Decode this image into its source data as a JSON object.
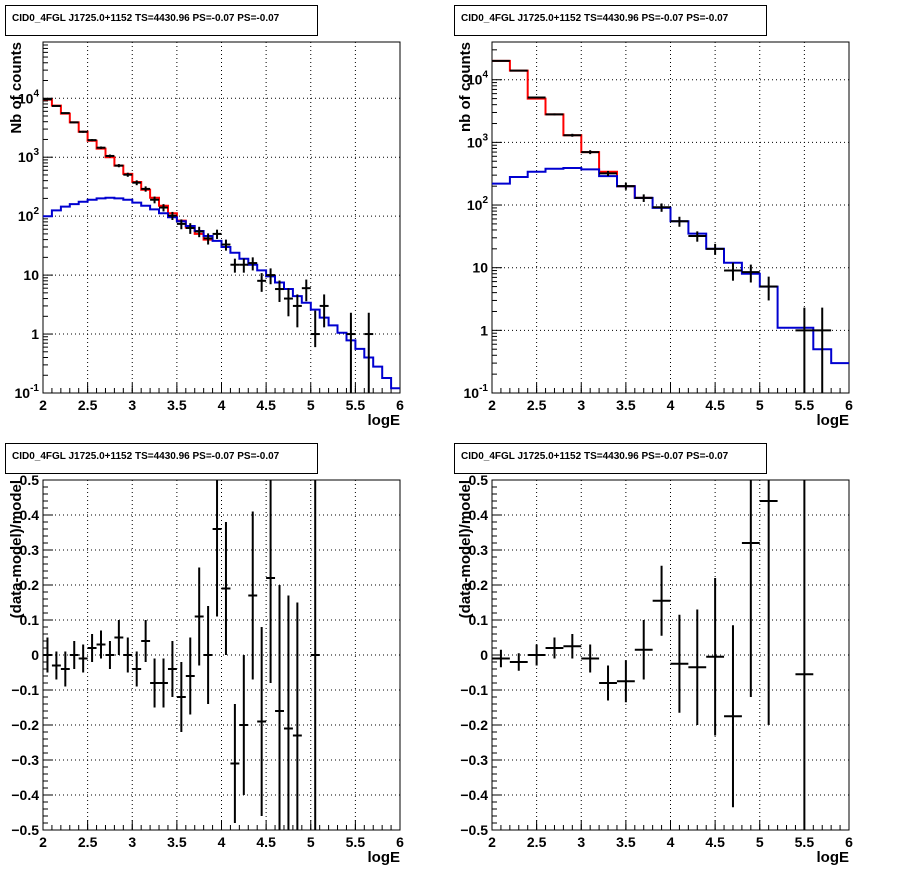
{
  "chart_data": [
    {
      "type": "step-histogram-log",
      "title": "CID0_4FGL J1725.0+1152 TS=4430.96 PS=-0.07 PS=-0.07",
      "xlabel": "logE",
      "ylabel": "Nb of counts",
      "xlim": [
        2,
        6
      ],
      "ylim": [
        0.1,
        90000
      ],
      "ylog": true,
      "grid": true,
      "x_ticks": [
        "2",
        "2.5",
        "3",
        "3.5",
        "4",
        "4.5",
        "5",
        "5.5",
        "6"
      ],
      "y_ticks": [
        {
          "v": 0.1,
          "exp": "-1"
        },
        {
          "v": 1,
          "label": "1"
        },
        {
          "v": 10,
          "label": "10"
        },
        {
          "v": 100,
          "exp": "2"
        },
        {
          "v": 1000,
          "exp": "3"
        },
        {
          "v": 10000,
          "exp": "4"
        }
      ],
      "bin_width": 0.1,
      "bin_start": 2.0,
      "series": [
        {
          "color": "#ff0000",
          "kind": "step",
          "values": [
            9500,
            7500,
            5500,
            3900,
            2700,
            1900,
            1400,
            1000,
            720,
            520,
            380,
            280,
            205,
            150,
            112,
            84,
            64,
            50,
            40
          ]
        },
        {
          "color": "#0000d0",
          "kind": "step",
          "values": [
            100,
            125,
            145,
            160,
            175,
            190,
            200,
            205,
            200,
            190,
            170,
            150,
            130,
            112,
            96,
            82,
            68,
            56,
            46,
            38,
            30,
            24,
            19,
            15,
            12,
            9.5,
            7.5,
            5.8,
            4.4,
            3.4,
            2.6,
            1.9,
            1.4,
            1.05,
            0.78,
            0.56,
            0.4,
            0.28,
            0.18,
            0.12
          ]
        }
      ],
      "points": [
        {
          "x": 2.05,
          "y": 9600,
          "lo": 9400,
          "hi": 9800
        },
        {
          "x": 2.15,
          "y": 7400,
          "lo": 7250,
          "hi": 7550
        },
        {
          "x": 2.25,
          "y": 5600,
          "lo": 5450,
          "hi": 5750
        },
        {
          "x": 2.35,
          "y": 3900,
          "lo": 3780,
          "hi": 4020
        },
        {
          "x": 2.45,
          "y": 2700,
          "lo": 2600,
          "hi": 2800
        },
        {
          "x": 2.55,
          "y": 1950,
          "lo": 1870,
          "hi": 2030
        },
        {
          "x": 2.65,
          "y": 1450,
          "lo": 1380,
          "hi": 1520
        },
        {
          "x": 2.75,
          "y": 1050,
          "lo": 990,
          "hi": 1110
        },
        {
          "x": 2.85,
          "y": 720,
          "lo": 675,
          "hi": 765
        },
        {
          "x": 2.95,
          "y": 505,
          "lo": 465,
          "hi": 545
        },
        {
          "x": 3.05,
          "y": 370,
          "lo": 335,
          "hi": 405
        },
        {
          "x": 3.15,
          "y": 290,
          "lo": 260,
          "hi": 320
        },
        {
          "x": 3.25,
          "y": 190,
          "lo": 165,
          "hi": 215
        },
        {
          "x": 3.35,
          "y": 140,
          "lo": 120,
          "hi": 160
        },
        {
          "x": 3.45,
          "y": 102,
          "lo": 86,
          "hi": 118
        },
        {
          "x": 3.55,
          "y": 74,
          "lo": 60,
          "hi": 88
        },
        {
          "x": 3.65,
          "y": 63,
          "lo": 50,
          "hi": 76
        },
        {
          "x": 3.75,
          "y": 55,
          "lo": 44,
          "hi": 66
        },
        {
          "x": 3.85,
          "y": 42,
          "lo": 33,
          "hi": 51
        },
        {
          "x": 3.95,
          "y": 50,
          "lo": 41,
          "hi": 59
        },
        {
          "x": 4.05,
          "y": 33,
          "lo": 26,
          "hi": 40
        },
        {
          "x": 4.15,
          "y": 15,
          "lo": 11,
          "hi": 19
        },
        {
          "x": 4.25,
          "y": 15,
          "lo": 11,
          "hi": 19
        },
        {
          "x": 4.35,
          "y": 16,
          "lo": 12,
          "hi": 20
        },
        {
          "x": 4.45,
          "y": 8,
          "lo": 5.2,
          "hi": 10.8
        },
        {
          "x": 4.55,
          "y": 10,
          "lo": 7,
          "hi": 13
        },
        {
          "x": 4.65,
          "y": 5.8,
          "lo": 3.5,
          "hi": 8.1
        },
        {
          "x": 4.75,
          "y": 4,
          "lo": 2,
          "hi": 6
        },
        {
          "x": 4.85,
          "y": 3,
          "lo": 1.3,
          "hi": 4.7
        },
        {
          "x": 4.95,
          "y": 6,
          "lo": 3.6,
          "hi": 8.4
        },
        {
          "x": 5.05,
          "y": 1,
          "lo": 0.6,
          "hi": 2.5
        },
        {
          "x": 5.15,
          "y": 3,
          "lo": 1.3,
          "hi": 4.7
        },
        {
          "x": 5.45,
          "y": 1,
          "lo": 0.1,
          "hi": 2.3
        },
        {
          "x": 5.65,
          "y": 1,
          "lo": 0.1,
          "hi": 2.3
        }
      ]
    },
    {
      "type": "step-histogram-log",
      "title": "CID0_4FGL J1725.0+1152 TS=4430.96 PS=-0.07 PS=-0.07",
      "xlabel": "logE",
      "ylabel": "nb of counts",
      "xlim": [
        2,
        6
      ],
      "ylim": [
        0.1,
        40000
      ],
      "ylog": true,
      "grid": true,
      "x_ticks": [
        "2",
        "2.5",
        "3",
        "3.5",
        "4",
        "4.5",
        "5",
        "5.5",
        "6"
      ],
      "y_ticks": [
        {
          "v": 0.1,
          "exp": "-1"
        },
        {
          "v": 1,
          "label": "1"
        },
        {
          "v": 10,
          "label": "10"
        },
        {
          "v": 100,
          "exp": "2"
        },
        {
          "v": 1000,
          "exp": "3"
        },
        {
          "v": 10000,
          "exp": "4"
        }
      ],
      "bin_width": 0.2,
      "bin_start": 2.0,
      "series": [
        {
          "color": "#ff0000",
          "kind": "step",
          "values": [
            20000,
            14000,
            5000,
            2800,
            1300,
            700,
            340,
            200,
            130
          ]
        },
        {
          "color": "#0000d0",
          "kind": "step",
          "values": [
            220,
            280,
            340,
            380,
            390,
            370,
            290,
            200,
            130,
            90,
            55,
            35,
            20,
            12,
            8,
            5,
            1.1,
            1.1,
            0.5,
            0.3
          ]
        }
      ],
      "points": [
        {
          "x": 2.1,
          "y": 20000,
          "lo": 19600,
          "hi": 20400
        },
        {
          "x": 2.3,
          "y": 14000,
          "lo": 13700,
          "hi": 14300
        },
        {
          "x": 2.5,
          "y": 5200,
          "lo": 5050,
          "hi": 5350
        },
        {
          "x": 2.7,
          "y": 2800,
          "lo": 2700,
          "hi": 2900
        },
        {
          "x": 2.9,
          "y": 1300,
          "lo": 1230,
          "hi": 1370
        },
        {
          "x": 3.1,
          "y": 700,
          "lo": 650,
          "hi": 750
        },
        {
          "x": 3.3,
          "y": 320,
          "lo": 290,
          "hi": 350
        },
        {
          "x": 3.5,
          "y": 200,
          "lo": 175,
          "hi": 225
        },
        {
          "x": 3.7,
          "y": 130,
          "lo": 112,
          "hi": 148
        },
        {
          "x": 3.9,
          "y": 92,
          "lo": 78,
          "hi": 106
        },
        {
          "x": 4.1,
          "y": 55,
          "lo": 45,
          "hi": 65
        },
        {
          "x": 4.3,
          "y": 32,
          "lo": 26,
          "hi": 38
        },
        {
          "x": 4.5,
          "y": 20,
          "lo": 16,
          "hi": 24
        },
        {
          "x": 4.7,
          "y": 9,
          "lo": 6.2,
          "hi": 12
        },
        {
          "x": 4.9,
          "y": 8.5,
          "lo": 5.8,
          "hi": 11.2
        },
        {
          "x": 5.1,
          "y": 5,
          "lo": 3,
          "hi": 7.2
        },
        {
          "x": 5.5,
          "y": 1,
          "lo": 0.1,
          "hi": 2.3
        },
        {
          "x": 5.7,
          "y": 1,
          "lo": 0.1,
          "hi": 2.3
        }
      ]
    },
    {
      "type": "scatter-errorbar",
      "title": "CID0_4FGL J1725.0+1152 TS=4430.96 PS=-0.07 PS=-0.07",
      "xlabel": "logE",
      "ylabel": "(data-model)/model",
      "xlim": [
        2,
        6
      ],
      "ylim": [
        -0.5,
        0.5
      ],
      "ylog": false,
      "grid": true,
      "x_ticks": [
        "2",
        "2.5",
        "3",
        "3.5",
        "4",
        "4.5",
        "5",
        "5.5",
        "6"
      ],
      "y_ticks": [
        {
          "v": -0.5,
          "label": "−0.5"
        },
        {
          "v": -0.4,
          "label": "−0.4"
        },
        {
          "v": -0.3,
          "label": "−0.3"
        },
        {
          "v": -0.2,
          "label": "−0.2"
        },
        {
          "v": -0.1,
          "label": "−0.1"
        },
        {
          "v": 0,
          "label": "0"
        },
        {
          "v": 0.1,
          "label": "0.1"
        },
        {
          "v": 0.2,
          "label": "0.2"
        },
        {
          "v": 0.3,
          "label": "0.3"
        },
        {
          "v": 0.4,
          "label": "0.4"
        },
        {
          "v": 0.5,
          "label": "0.5"
        }
      ],
      "half_width": 0.05,
      "points": [
        {
          "x": 2.05,
          "y": 0.0,
          "err": 0.05
        },
        {
          "x": 2.15,
          "y": -0.03,
          "err": 0.04
        },
        {
          "x": 2.25,
          "y": -0.04,
          "err": 0.05
        },
        {
          "x": 2.35,
          "y": 0.0,
          "err": 0.04
        },
        {
          "x": 2.45,
          "y": -0.01,
          "err": 0.04
        },
        {
          "x": 2.55,
          "y": 0.02,
          "err": 0.04
        },
        {
          "x": 2.65,
          "y": 0.03,
          "err": 0.04
        },
        {
          "x": 2.75,
          "y": 0.0,
          "err": 0.04
        },
        {
          "x": 2.85,
          "y": 0.05,
          "err": 0.05
        },
        {
          "x": 2.95,
          "y": 0.0,
          "err": 0.05
        },
        {
          "x": 3.05,
          "y": -0.04,
          "err": 0.05
        },
        {
          "x": 3.15,
          "y": 0.04,
          "err": 0.06
        },
        {
          "x": 3.25,
          "y": -0.08,
          "err": 0.07
        },
        {
          "x": 3.35,
          "y": -0.08,
          "err": 0.07
        },
        {
          "x": 3.45,
          "y": -0.04,
          "err": 0.08
        },
        {
          "x": 3.55,
          "y": -0.12,
          "err": 0.1
        },
        {
          "x": 3.65,
          "y": -0.06,
          "err": 0.11
        },
        {
          "x": 3.75,
          "y": 0.11,
          "err": 0.14
        },
        {
          "x": 3.85,
          "y": 0.0,
          "err": 0.14
        },
        {
          "x": 3.95,
          "y": 0.36,
          "err": 0.25
        },
        {
          "x": 4.05,
          "y": 0.19,
          "err": 0.19
        },
        {
          "x": 4.15,
          "y": -0.31,
          "err": 0.17
        },
        {
          "x": 4.25,
          "y": -0.2,
          "err": 0.2
        },
        {
          "x": 4.35,
          "y": 0.17,
          "err": 0.24
        },
        {
          "x": 4.45,
          "y": -0.19,
          "err": 0.27
        },
        {
          "x": 4.55,
          "y": 0.22,
          "err": 0.3
        },
        {
          "x": 4.65,
          "y": -0.16,
          "err": 0.36
        },
        {
          "x": 4.75,
          "y": -0.21,
          "err": 0.38
        },
        {
          "x": 4.85,
          "y": -0.23,
          "err": 0.38
        },
        {
          "x": 5.05,
          "y": 0.0,
          "err": 0.6
        }
      ]
    },
    {
      "type": "scatter-errorbar",
      "title": "CID0_4FGL J1725.0+1152 TS=4430.96 PS=-0.07 PS=-0.07",
      "xlabel": "logE",
      "ylabel": "(data-model)/model",
      "xlim": [
        2,
        6
      ],
      "ylim": [
        -0.5,
        0.5
      ],
      "ylog": false,
      "grid": true,
      "x_ticks": [
        "2",
        "2.5",
        "3",
        "3.5",
        "4",
        "4.5",
        "5",
        "5.5",
        "6"
      ],
      "y_ticks": [
        {
          "v": -0.5,
          "label": "−0.5"
        },
        {
          "v": -0.4,
          "label": "−0.4"
        },
        {
          "v": -0.3,
          "label": "−0.3"
        },
        {
          "v": -0.2,
          "label": "−0.2"
        },
        {
          "v": -0.1,
          "label": "−0.1"
        },
        {
          "v": 0,
          "label": "0"
        },
        {
          "v": 0.1,
          "label": "0.1"
        },
        {
          "v": 0.2,
          "label": "0.2"
        },
        {
          "v": 0.3,
          "label": "0.3"
        },
        {
          "v": 0.4,
          "label": "0.4"
        },
        {
          "v": 0.5,
          "label": "0.5"
        }
      ],
      "half_width": 0.1,
      "points": [
        {
          "x": 2.1,
          "y": -0.01,
          "err": 0.025
        },
        {
          "x": 2.3,
          "y": -0.02,
          "err": 0.025
        },
        {
          "x": 2.5,
          "y": 0.0,
          "err": 0.03
        },
        {
          "x": 2.7,
          "y": 0.02,
          "err": 0.03
        },
        {
          "x": 2.9,
          "y": 0.025,
          "err": 0.035
        },
        {
          "x": 3.1,
          "y": -0.01,
          "err": 0.04
        },
        {
          "x": 3.3,
          "y": -0.08,
          "err": 0.05
        },
        {
          "x": 3.5,
          "y": -0.075,
          "err": 0.06
        },
        {
          "x": 3.7,
          "y": 0.015,
          "err": 0.085
        },
        {
          "x": 3.9,
          "y": 0.155,
          "err": 0.1
        },
        {
          "x": 4.1,
          "y": -0.025,
          "err": 0.14
        },
        {
          "x": 4.3,
          "y": -0.035,
          "err": 0.165
        },
        {
          "x": 4.5,
          "y": -0.005,
          "err": 0.225
        },
        {
          "x": 4.7,
          "y": -0.175,
          "err": 0.26
        },
        {
          "x": 4.9,
          "y": 0.32,
          "err": 0.44
        },
        {
          "x": 5.1,
          "y": 0.44,
          "err": 0.64
        },
        {
          "x": 5.5,
          "y": -0.055,
          "err": 0.8
        }
      ]
    }
  ]
}
